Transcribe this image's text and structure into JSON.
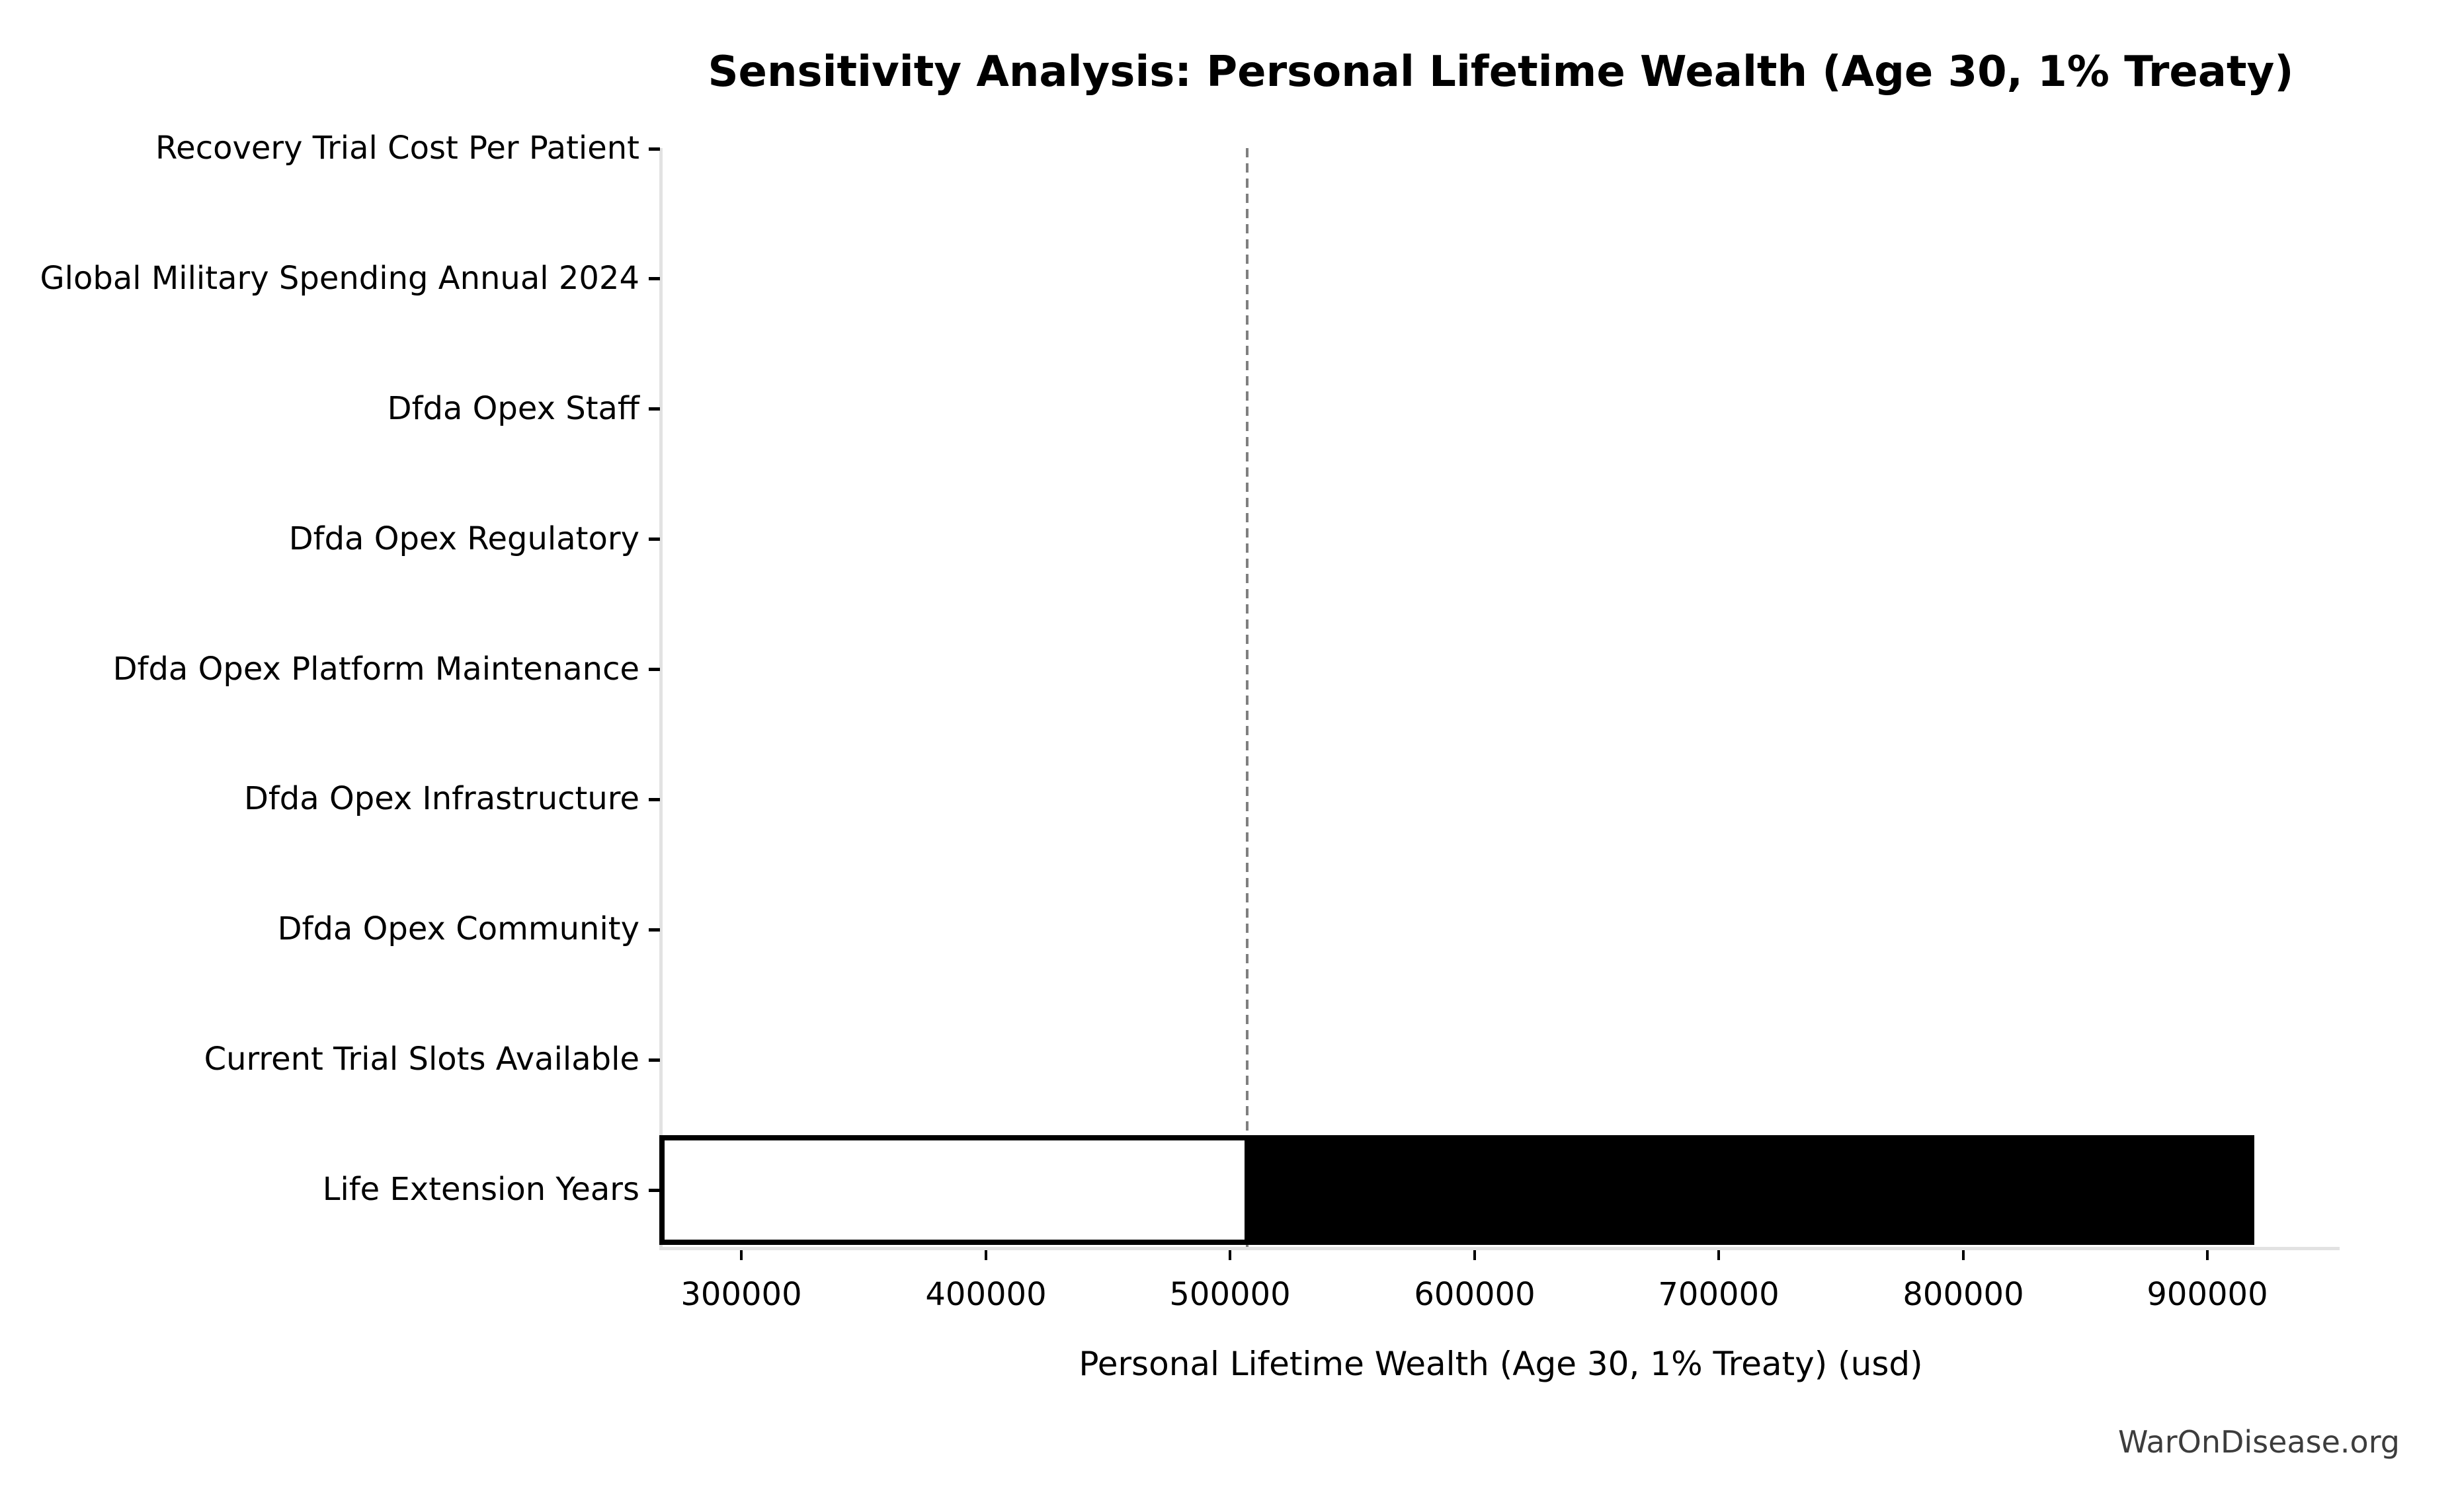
{
  "chart_data": {
    "type": "bar",
    "orientation": "horizontal",
    "subtype": "tornado-sensitivity",
    "title": "Sensitivity Analysis: Personal Lifetime Wealth (Age 30, 1% Treaty)",
    "xlabel": "Personal Lifetime Wealth (Age 30, 1% Treaty) (usd)",
    "ylabel": "",
    "categories": [
      "Recovery Trial Cost Per Patient",
      "Global Military Spending Annual 2024",
      "Dfda Opex Staff",
      "Dfda Opex Regulatory",
      "Dfda Opex Platform Maintenance",
      "Dfda Opex Infrastructure",
      "Dfda Opex Community",
      "Current Trial Slots Available",
      "Life Extension Years"
    ],
    "bars": [
      {
        "category": "Life Extension Years",
        "low": 267500,
        "base": 507000,
        "high": 919000,
        "low_fill": "#ffffff",
        "high_fill": "#000000",
        "edge_color": "#000000"
      }
    ],
    "note": "All other categories show no visible bar (negligible sensitivity around the baseline).",
    "baseline": {
      "value": 507000,
      "style": "dashed",
      "color": "#7f7f7f"
    },
    "xlim": [
      267500,
      954000
    ],
    "xticks": [
      300000,
      400000,
      500000,
      600000,
      700000,
      800000,
      900000
    ],
    "grid": false,
    "legend": null,
    "colors": {
      "spine": "#e2e2e2",
      "tick": "#000000",
      "text": "#000000",
      "watermark_text": "#3d3d3d",
      "background": "#ffffff"
    }
  },
  "watermark": {
    "text": "WarOnDisease.org"
  }
}
